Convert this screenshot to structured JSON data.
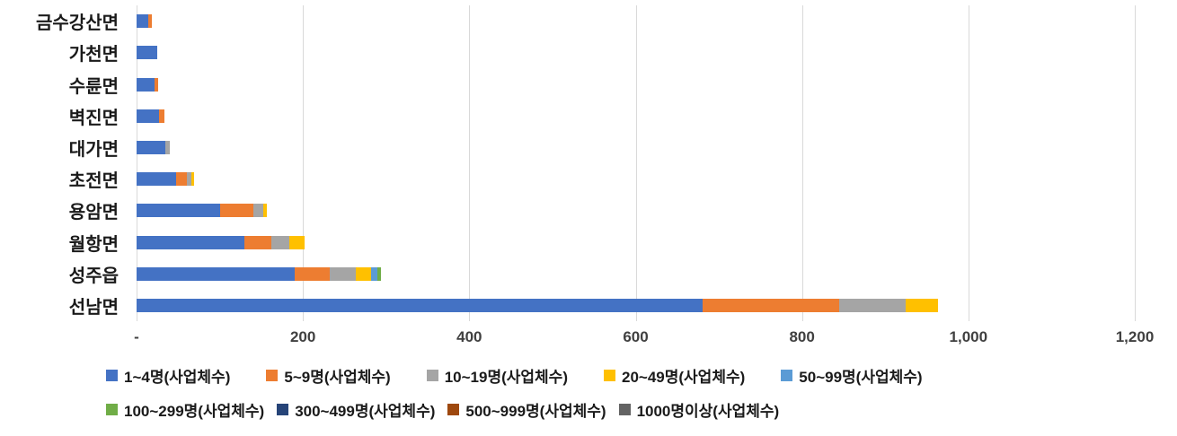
{
  "chart_data": {
    "type": "bar",
    "orientation": "horizontal",
    "stacked": true,
    "title": "",
    "xlabel": "",
    "ylabel": "",
    "xlim": [
      0,
      1200
    ],
    "x_tick_step": 200,
    "x_ticks": [
      "-",
      "200",
      "400",
      "600",
      "800",
      "1,000",
      "1,200"
    ],
    "grid": true,
    "legend_position": "bottom",
    "categories": [
      "금수강산면",
      "가천면",
      "수륜면",
      "벽진면",
      "대가면",
      "초전면",
      "용암면",
      "월항면",
      "성주읍",
      "선남면"
    ],
    "series": [
      {
        "name": "1~4명(사업체수)",
        "color": "#4472C4",
        "values": [
          14,
          25,
          22,
          27,
          35,
          48,
          100,
          130,
          190,
          680
        ]
      },
      {
        "name": "5~9명(사업체수)",
        "color": "#ED7D31",
        "values": [
          4,
          0,
          4,
          6,
          0,
          12,
          40,
          32,
          42,
          165
        ]
      },
      {
        "name": "10~19명(사업체수)",
        "color": "#A5A5A5",
        "values": [
          0,
          0,
          0,
          0,
          5,
          6,
          12,
          22,
          32,
          80
        ]
      },
      {
        "name": "20~49명(사업체수)",
        "color": "#FFC000",
        "values": [
          0,
          0,
          0,
          0,
          0,
          3,
          5,
          18,
          18,
          38
        ]
      },
      {
        "name": "50~99명(사업체수)",
        "color": "#5B9BD5",
        "values": [
          0,
          0,
          0,
          0,
          0,
          0,
          0,
          0,
          8,
          0
        ]
      },
      {
        "name": "100~299명(사업체수)",
        "color": "#70AD47",
        "values": [
          0,
          0,
          0,
          0,
          0,
          0,
          0,
          0,
          4,
          0
        ]
      },
      {
        "name": "300~499명(사업체수)",
        "color": "#264478",
        "values": [
          0,
          0,
          0,
          0,
          0,
          0,
          0,
          0,
          0,
          0
        ]
      },
      {
        "name": "500~999명(사업체수)",
        "color": "#9E480E",
        "values": [
          0,
          0,
          0,
          0,
          0,
          0,
          0,
          0,
          0,
          0
        ]
      },
      {
        "name": "1000명이상(사업체수)",
        "color": "#636363",
        "values": [
          0,
          0,
          0,
          0,
          0,
          0,
          0,
          0,
          0,
          0
        ]
      }
    ],
    "legend_rows": [
      [
        0,
        1,
        2,
        3,
        4
      ],
      [
        5,
        6,
        7,
        8
      ]
    ]
  }
}
